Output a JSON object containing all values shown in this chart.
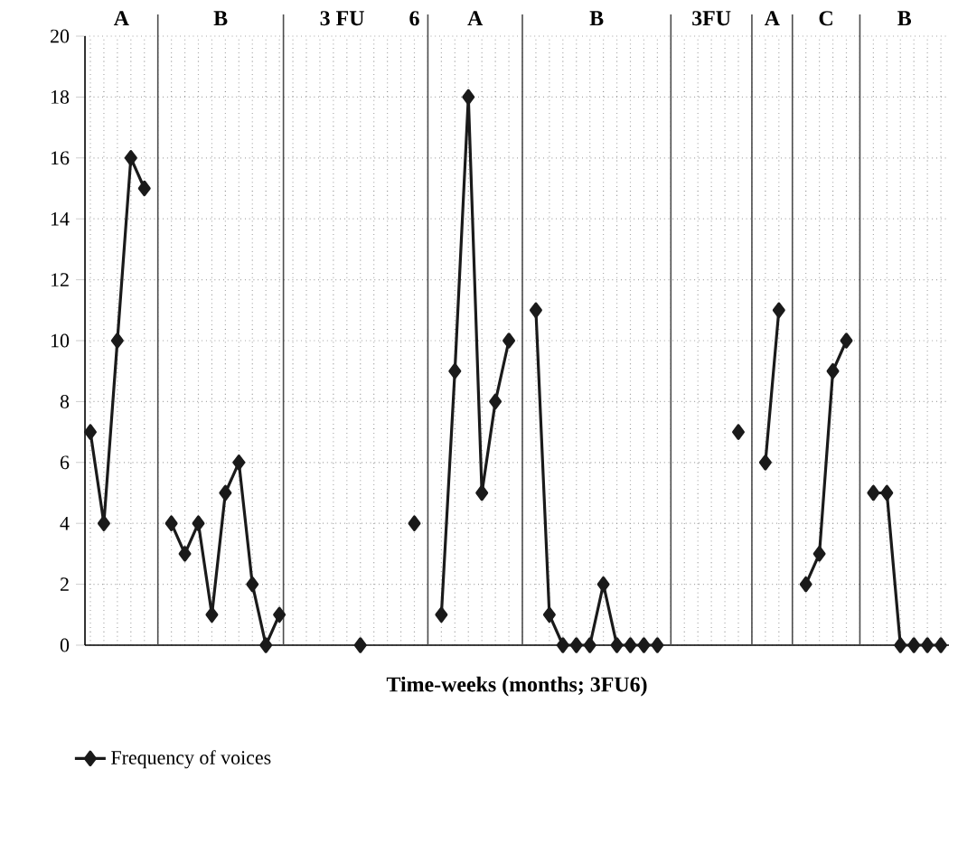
{
  "chart_data": {
    "type": "line",
    "xlabel": "Time-weeks (months; 3FU6)",
    "annotations": [
      "A",
      "B",
      "3 FU",
      "6",
      "A",
      "B",
      "3FU",
      "A",
      "C",
      "B"
    ],
    "categories": [
      null,
      null,
      null,
      null,
      null,
      null,
      null,
      null,
      null,
      null,
      null,
      null,
      null,
      null,
      null,
      null,
      null,
      null,
      null,
      null,
      null,
      null,
      null,
      null,
      null,
      null,
      null,
      null,
      null,
      null,
      null,
      null,
      null,
      null,
      null,
      null,
      null,
      null,
      null,
      null,
      null,
      null,
      null,
      null,
      null,
      null,
      null,
      null,
      null,
      null,
      null,
      null,
      null,
      null,
      null,
      null,
      null,
      null,
      null,
      null,
      null,
      null,
      null,
      null
    ],
    "series": [
      {
        "name": "Frequency of voices",
        "color": "#1a1a1a",
        "values": [
          7,
          4,
          10,
          16,
          15,
          null,
          4,
          3,
          4,
          1,
          5,
          6,
          2,
          0,
          1,
          null,
          null,
          null,
          null,
          null,
          0,
          null,
          null,
          null,
          4,
          null,
          1,
          9,
          18,
          5,
          8,
          10,
          null,
          11,
          1,
          0,
          0,
          0,
          2,
          0,
          0,
          0,
          0,
          null,
          null,
          null,
          null,
          null,
          7,
          null,
          6,
          11,
          null,
          2,
          3,
          9,
          10,
          null,
          5,
          5,
          0,
          0,
          0,
          0
        ]
      }
    ],
    "ylim": [
      0,
      20
    ],
    "yticks": [
      0,
      2,
      4,
      6,
      8,
      10,
      12,
      14,
      16,
      18,
      20
    ],
    "grid": true,
    "tick_labels": "y",
    "legend": "bottom",
    "marker": "diamond",
    "line_style": "solid"
  }
}
